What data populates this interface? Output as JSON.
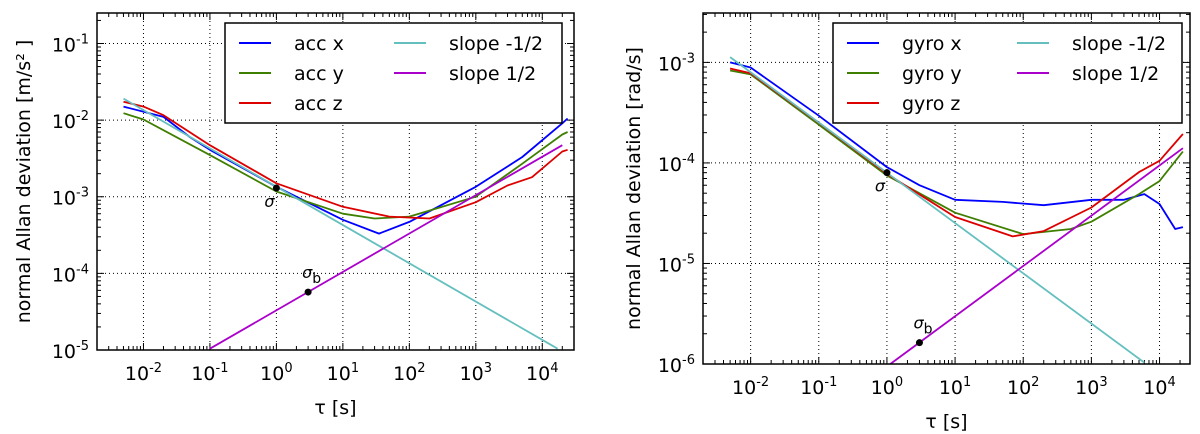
{
  "chart_data": [
    {
      "type": "line",
      "xscale": "log",
      "yscale": "log",
      "xlabel": "τ [s]",
      "ylabel": "normal Allan deviation [m/s² ]",
      "xlim": [
        0.002,
        30000
      ],
      "ylim": [
        1e-05,
        0.25
      ],
      "xticks": [
        "10^-2",
        "10^-1",
        "10^0",
        "10^1",
        "10^2",
        "10^3",
        "10^4"
      ],
      "yticks": [
        "10^-5",
        "10^-4",
        "10^-3",
        "10^-2",
        "10^-1"
      ],
      "grid": true,
      "legend_placement": "top-right",
      "legend_columns": 2,
      "series": [
        {
          "name": "acc x",
          "color": "#0000ff",
          "x": [
            0.005,
            0.02,
            0.05,
            0.1,
            1,
            10,
            35,
            100,
            1000,
            5000,
            20000,
            24000
          ],
          "y": [
            0.015,
            0.011,
            0.006,
            0.0041,
            0.00135,
            0.0005,
            0.00033,
            0.00047,
            0.00135,
            0.0033,
            0.0091,
            0.0105
          ]
        },
        {
          "name": "acc y",
          "color": "#3f7f00",
          "x": [
            0.005,
            0.01,
            0.1,
            1,
            10,
            30,
            100,
            1000,
            5000,
            20000,
            24000
          ],
          "y": [
            0.0123,
            0.0102,
            0.0035,
            0.00117,
            0.0006,
            0.00052,
            0.00055,
            0.001,
            0.0027,
            0.0065,
            0.007
          ]
        },
        {
          "name": "acc z",
          "color": "#dd0000",
          "x": [
            0.005,
            0.01,
            0.02,
            0.1,
            1,
            10,
            50,
            200,
            1000,
            3000,
            7000,
            20000,
            24000
          ],
          "y": [
            0.0174,
            0.015,
            0.0116,
            0.0047,
            0.0015,
            0.00074,
            0.00055,
            0.00052,
            0.00085,
            0.0014,
            0.0018,
            0.0039,
            0.0041
          ]
        },
        {
          "name": "slope -1/2",
          "color": "#66bfbf",
          "x": [
            0.005,
            17000
          ],
          "y": [
            0.0191,
            1.04e-05
          ]
        },
        {
          "name": "slope 1/2",
          "color": "#aa00cc",
          "x": [
            0.1,
            20000
          ],
          "y": [
            1.04e-05,
            0.0047
          ]
        }
      ],
      "annotations": [
        {
          "label": "σ",
          "x": 1,
          "y": 0.0013
        },
        {
          "label": "σ",
          "sub": "b",
          "x": 3,
          "y": 5.7e-05
        }
      ]
    },
    {
      "type": "line",
      "xscale": "log",
      "yscale": "log",
      "xlabel": "τ [s]",
      "ylabel": "normal Allan deviation [rad/s]",
      "xlim": [
        0.002,
        28000
      ],
      "ylim": [
        1e-06,
        0.0031
      ],
      "xticks": [
        "10^-2",
        "10^-1",
        "10^0",
        "10^1",
        "10^2",
        "10^3",
        "10^4"
      ],
      "yticks": [
        "10^-6",
        "10^-5",
        "10^-4",
        "10^-3"
      ],
      "grid": true,
      "legend_placement": "top-right",
      "legend_columns": 2,
      "series": [
        {
          "name": "gyro x",
          "color": "#0000ff",
          "x": [
            0.005,
            0.01,
            0.1,
            1,
            3,
            10,
            50,
            200,
            1000,
            3000,
            6000,
            10000,
            17000,
            22000
          ],
          "y": [
            0.001,
            0.00089,
            0.000295,
            9.1e-05,
            6e-05,
            4.3e-05,
            4.1e-05,
            3.8e-05,
            4.3e-05,
            4.3e-05,
            4.9e-05,
            3.9e-05,
            2.2e-05,
            2.3e-05
          ]
        },
        {
          "name": "gyro y",
          "color": "#3f7f00",
          "x": [
            0.005,
            0.01,
            0.1,
            1,
            10,
            100,
            500,
            1000,
            5000,
            10000,
            22000
          ],
          "y": [
            0.00083,
            0.00076,
            0.00024,
            7.5e-05,
            3.2e-05,
            1.96e-05,
            2.2e-05,
            2.6e-05,
            4.9e-05,
            6.6e-05,
            0.00013
          ]
        },
        {
          "name": "gyro z",
          "color": "#dd0000",
          "x": [
            0.005,
            0.01,
            0.1,
            1,
            10,
            70,
            200,
            1000,
            5000,
            10000,
            22000
          ],
          "y": [
            0.00087,
            0.00078,
            0.00025,
            7.8e-05,
            2.9e-05,
            1.86e-05,
            2.1e-05,
            3.6e-05,
            8.1e-05,
            0.000105,
            0.000194
          ]
        },
        {
          "name": "slope -1/2",
          "color": "#66bfbf",
          "x": [
            0.005,
            6000
          ],
          "y": [
            0.00113,
            1.03e-06
          ]
        },
        {
          "name": "slope 1/2",
          "color": "#aa00cc",
          "x": [
            1.1,
            22000
          ],
          "y": [
            9.9e-07,
            0.00014
          ]
        }
      ],
      "annotations": [
        {
          "label": "σ",
          "x": 1,
          "y": 8e-05
        },
        {
          "label": "σ",
          "sub": "b",
          "x": 3,
          "y": 1.63e-06
        }
      ]
    }
  ]
}
